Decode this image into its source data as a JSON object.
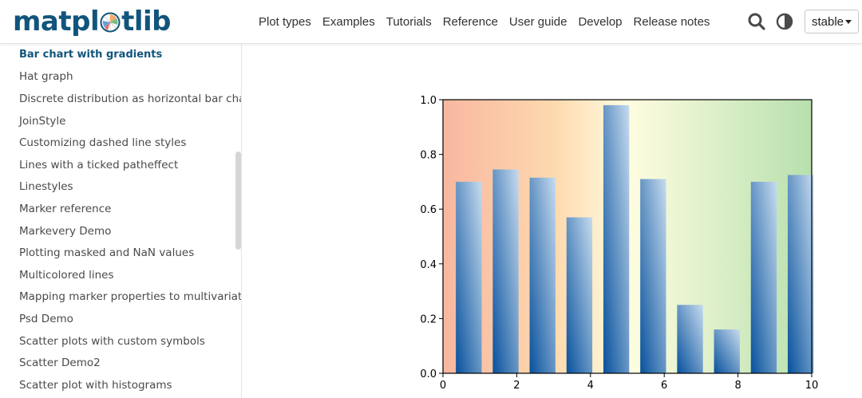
{
  "header": {
    "logo_text_start": "matpl",
    "logo_text_end": "tlib",
    "nav": [
      "Plot types",
      "Examples",
      "Tutorials",
      "Reference",
      "User guide",
      "Develop",
      "Release notes"
    ],
    "version": "stable"
  },
  "icons": {
    "search": "search-icon",
    "theme": "half-circle-theme-icon"
  },
  "sidebar": {
    "items": [
      {
        "label": "Bar chart with gradients",
        "active": true
      },
      {
        "label": "Hat graph",
        "active": false
      },
      {
        "label": "Discrete distribution as horizontal bar chart",
        "active": false
      },
      {
        "label": "JoinStyle",
        "active": false
      },
      {
        "label": "Customizing dashed line styles",
        "active": false
      },
      {
        "label": "Lines with a ticked patheffect",
        "active": false
      },
      {
        "label": "Linestyles",
        "active": false
      },
      {
        "label": "Marker reference",
        "active": false
      },
      {
        "label": "Markevery Demo",
        "active": false
      },
      {
        "label": "Plotting masked and NaN values",
        "active": false
      },
      {
        "label": "Multicolored lines",
        "active": false
      },
      {
        "label": "Mapping marker properties to multivariate data",
        "active": false
      },
      {
        "label": "Psd Demo",
        "active": false
      },
      {
        "label": "Scatter plots with custom symbols",
        "active": false
      },
      {
        "label": "Scatter Demo2",
        "active": false
      },
      {
        "label": "Scatter plot with histograms",
        "active": false
      }
    ]
  },
  "colors": {
    "brand": "#11557c",
    "bg_gradient_left": "#f8b7a0",
    "bg_gradient_mid_left": "#fdd9ae",
    "bg_gradient_mid": "#fffde0",
    "bg_gradient_right": "#b7e0ae",
    "bar_top": "#c6dbef",
    "bar_bottom": "#08519c"
  },
  "chart_data": {
    "type": "bar",
    "x": [
      0.7,
      1.7,
      2.7,
      3.7,
      4.7,
      5.7,
      6.7,
      7.7,
      8.7,
      9.7
    ],
    "values": [
      0.7,
      0.745,
      0.715,
      0.57,
      0.98,
      0.71,
      0.25,
      0.16,
      0.7,
      0.725
    ],
    "xlim": [
      0,
      10
    ],
    "ylim": [
      0,
      1
    ],
    "xticks": [
      "0",
      "2",
      "4",
      "6",
      "8",
      "10"
    ],
    "yticks": [
      "0.0",
      "0.2",
      "0.4",
      "0.6",
      "0.8",
      "1.0"
    ],
    "title": "",
    "xlabel": "",
    "ylabel": "",
    "grid": false
  }
}
